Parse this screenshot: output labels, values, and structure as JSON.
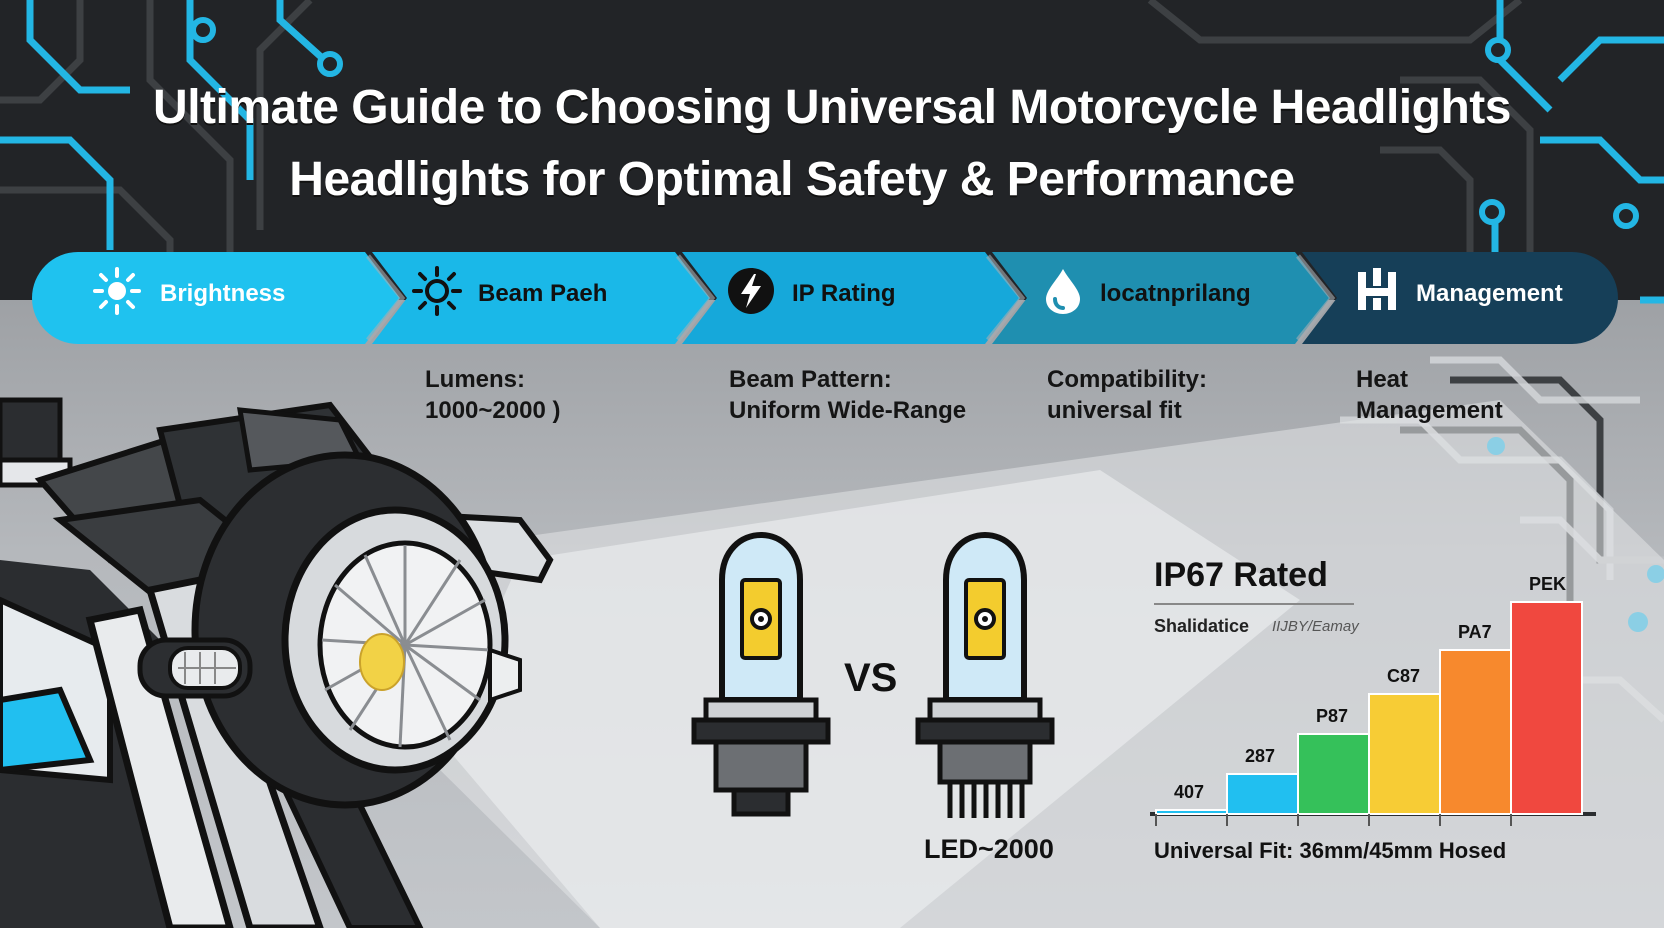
{
  "title": {
    "line1": "Ultimate Guide to Choosing Universal Motorcycle Headlights",
    "line2": "Headlights for Optimal Safety & Performance"
  },
  "colors": {
    "accent_cyan": "#1fc2ef",
    "teal_mid": "#1f8fb0",
    "navy": "#163f58",
    "circuit": "#23b6e4"
  },
  "feature_band": [
    {
      "label": "Brightness",
      "icon": "sun-icon"
    },
    {
      "label": "Beam Paeh",
      "icon": "sun-outline-icon"
    },
    {
      "label": "IP Rating",
      "icon": "lightning-bolt-icon"
    },
    {
      "label": "locatnprilang",
      "icon": "water-drop-icon"
    },
    {
      "label": "Management",
      "icon": "heatsink-icon"
    }
  ],
  "specs": [
    {
      "line1": "Lumens:",
      "line2": "1000~2000 )"
    },
    {
      "line1": "Beam Pattern:",
      "line2": "Uniform Wide-Range"
    },
    {
      "line1": "Compatibility:",
      "line2": "universal fit"
    },
    {
      "line1": "Heat",
      "line2": "Management"
    }
  ],
  "comparison": {
    "vs": "VS",
    "right_bulb_label": "LED~2000"
  },
  "ip_panel": {
    "title": "IP67 Rated",
    "subtitle": "Shalidatice",
    "subtitle_note": "IIJBY/Eamay",
    "footer": "Universal Fit: 36mm/45mm Hosed"
  },
  "chart_data": {
    "type": "bar",
    "categories": [
      "407",
      "287",
      "P87",
      "C87",
      "PA7",
      "PEK"
    ],
    "values": [
      1,
      10,
      20,
      30,
      41,
      53
    ],
    "colors": [
      "#21bff0",
      "#21bff0",
      "#35c15a",
      "#f7cc35",
      "#f7892d",
      "#f0483f"
    ],
    "ylim": [
      0,
      60
    ],
    "grid": false
  }
}
